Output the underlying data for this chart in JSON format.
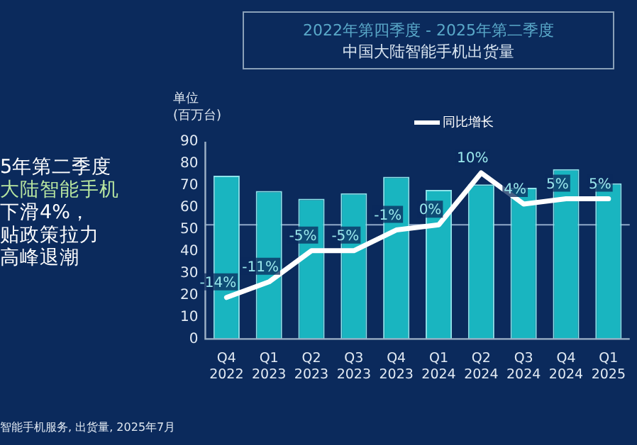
{
  "chart_data": {
    "type": "bar",
    "title": "2022年第四季度 - 2025年第二季度",
    "subtitle": "中国大陆智能手机出货量",
    "ylabel": "单位\n(百万台)",
    "categories": [
      "Q4 2022",
      "Q1 2023",
      "Q2 2023",
      "Q3 2023",
      "Q4 2023",
      "Q1 2024",
      "Q2 2024",
      "Q3 2024",
      "Q4 2024",
      "Q1 2025"
    ],
    "series": [
      {
        "color": "#19b5c0",
        "values": [
          74.5,
          67.5,
          64,
          66.5,
          74,
          68,
          70.5,
          69,
          77.5,
          71
        ]
      },
      {
        "type": "line",
        "name": "同比增长",
        "axis": "y2",
        "color": "#ffffff",
        "values": [
          -14,
          -11,
          -5,
          -5,
          -1,
          0,
          10,
          4,
          5,
          5
        ],
        "value_labels": [
          "-14%",
          "-11%",
          "-5%",
          "-5%",
          "-1%",
          "0%",
          "10%",
          "4%",
          "5%",
          "5%"
        ]
      }
    ],
    "ylim": [
      0,
      90
    ],
    "yticks": [
      0,
      10,
      20,
      30,
      40,
      50,
      60,
      70,
      80,
      90
    ],
    "y2lim": [
      -22,
      16
    ],
    "tick_labels": "xy",
    "ref_lines": [
      {
        "axis": "y2",
        "value": 0,
        "color": "#8fa8c8"
      }
    ],
    "grid": false,
    "legend": "top",
    "marker": "none",
    "line_style": "solid",
    "annotations": [
      "5年第二季度",
      "大陆智能手机",
      "下滑4%，",
      "贴政策拉力",
      "高峰退潮",
      "智能手机服务, 出货量, 2025年7月"
    ]
  }
}
